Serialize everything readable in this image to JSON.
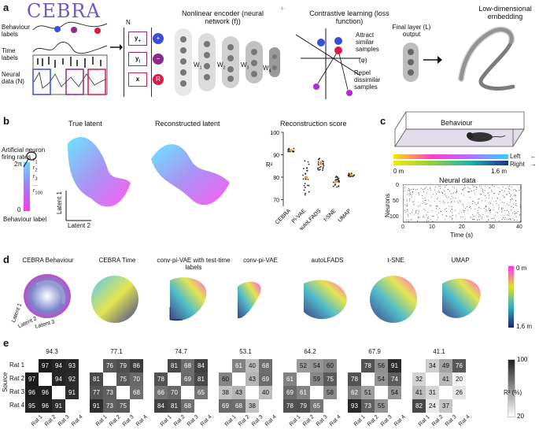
{
  "panel_letters": {
    "a": "a",
    "b": "b",
    "c": "c",
    "d": "d",
    "e": "e"
  },
  "colors": {
    "cebra_brand": "#6a5acd",
    "plus_blue": "#3a4fd8",
    "plus_purple": "#8d2a8c",
    "red_node": "#d81b4a",
    "magenta": "#e000e0",
    "cyan": "#35d7ff"
  },
  "panel_a": {
    "logo": "CEBRA",
    "behaviour_labels": "Behaviour labels",
    "time_labels": "Time labels",
    "neural_data": "Neural data (N)",
    "n_label": "N",
    "y_plus": "y",
    "y_plus_sub": "+",
    "y_i": "y",
    "y_i_sub": "i",
    "x_label": "x",
    "node_plus": "+",
    "node_minus": "−",
    "node_r": "R",
    "encoder_title": "Nonlinear encoder (neural network (f))",
    "weights": [
      "W",
      "W",
      "W",
      "W"
    ],
    "weight_subs": [
      "1",
      "2",
      "3",
      "4"
    ],
    "plus_sign": "+",
    "contrastive_title": "Contrastive learning (loss function)",
    "attract": "Attract similar samples",
    "phi": "(φ)",
    "repel": "Repel dissimilar samples",
    "final_layer": "Final layer (L) output",
    "embedding_title": "Low-dimensional embedding"
  },
  "panel_b": {
    "true_latent": "True latent",
    "reconstructed_latent": "Reconstructed latent",
    "firing_rates": "Artificial neuron firing rates",
    "r_labels": [
      "r",
      "r",
      "r",
      "...",
      "r"
    ],
    "r_subs": [
      "1",
      "2",
      "3",
      "",
      "100"
    ],
    "scale_top": "2π",
    "scale_bottom": "0",
    "behaviour_label": "Behaviour label",
    "latent1": "Latent 1",
    "latent2": "Latent 2"
  },
  "chart_data": {
    "type": "scatter",
    "title": "Reconstruction score",
    "ylabel": "R²",
    "categories": [
      "CEBRA",
      "Pi-VAE",
      "autoLFADS",
      "t-SNE",
      "UMAP"
    ],
    "yticks": [
      70,
      80,
      90,
      100
    ],
    "ylim": [
      67,
      100
    ],
    "means": [
      92,
      80,
      86,
      78,
      81
    ],
    "spread": [
      0.8,
      8,
      3,
      2.5,
      0.8
    ]
  },
  "panel_c": {
    "behaviour": "Behaviour",
    "left": "Left",
    "right": "Right",
    "pos_start": "0 m",
    "pos_end": "1.6 m",
    "neural_data": "Neural data",
    "ylabel": "Neurons",
    "yticks": [
      "0",
      "50",
      "100"
    ],
    "xticks": [
      "0",
      "10",
      "20",
      "30",
      "40"
    ],
    "xlabel": "Time (s)"
  },
  "panel_d": {
    "titles": [
      "CEBRA Behaviour",
      "CEBRA Time",
      "conv-pi-VAE with test-time labels",
      "conv-pi-VAE",
      "autoLFADS",
      "t-SNE",
      "UMAP"
    ],
    "colorbar_top": "0 m",
    "colorbar_bottom": "1.6 m",
    "latent1": "Latent 1",
    "latent2": "Latent 2",
    "latent3": "Latent 3"
  },
  "panel_e": {
    "source": "Source",
    "rows": [
      "Rat 1",
      "Rat 2",
      "Rat 3",
      "Rat 4"
    ],
    "cols": [
      "Rat 1",
      "Rat 2",
      "Rat 3",
      "Rat 4"
    ],
    "colorbar_top": "100",
    "colorbar_bottom": "20",
    "colorbar_label": "R² (%)",
    "matrices": [
      {
        "mean": "94.3",
        "cells": [
          [
            "",
            "97",
            "94",
            "93"
          ],
          [
            "97",
            "",
            "94",
            "92"
          ],
          [
            "96",
            "96",
            "",
            "91"
          ],
          [
            "95",
            "96",
            "91",
            ""
          ]
        ]
      },
      {
        "mean": "77.1",
        "cells": [
          [
            "",
            "76",
            "79",
            "86"
          ],
          [
            "81",
            "",
            "75",
            "70"
          ],
          [
            "77",
            "73",
            "",
            "68"
          ],
          [
            "91",
            "73",
            "75",
            ""
          ]
        ]
      },
      {
        "mean": "74.7",
        "cells": [
          [
            "",
            "81",
            "68",
            "84"
          ],
          [
            "78",
            "",
            "69",
            "81"
          ],
          [
            "66",
            "70",
            "",
            "65"
          ],
          [
            "84",
            "81",
            "68",
            ""
          ]
        ]
      },
      {
        "mean": "53.1",
        "cells": [
          [
            "",
            "61",
            "40",
            "68"
          ],
          [
            "60",
            "",
            "43",
            "69"
          ],
          [
            "38",
            "43",
            "",
            "40"
          ],
          [
            "69",
            "68",
            "38",
            ""
          ]
        ]
      },
      {
        "mean": "64.2",
        "cells": [
          [
            "",
            "52",
            "54",
            "60"
          ],
          [
            "61",
            "",
            "59",
            "75"
          ],
          [
            "69",
            "61",
            "",
            "58"
          ],
          [
            "78",
            "79",
            "65",
            ""
          ]
        ]
      },
      {
        "mean": "67.9",
        "cells": [
          [
            "",
            "78",
            "56",
            "91"
          ],
          [
            "78",
            "",
            "54",
            "74"
          ],
          [
            "62",
            "51",
            "",
            "54"
          ],
          [
            "93",
            "73",
            "55",
            ""
          ]
        ]
      },
      {
        "mean": "41.1",
        "cells": [
          [
            "",
            "34",
            "49",
            "76"
          ],
          [
            "32",
            "",
            "41",
            "20"
          ],
          [
            "41",
            "31",
            "",
            "26"
          ],
          [
            "82",
            "24",
            "37",
            ""
          ]
        ]
      }
    ]
  }
}
